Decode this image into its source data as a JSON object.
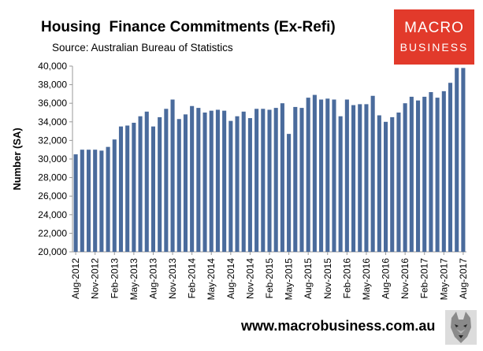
{
  "header": {
    "title": "Housing  Finance Commitments (Ex-Refi)",
    "subtitle": "Source: Australian Bureau of Statistics"
  },
  "logo": {
    "line1": "MACRO",
    "line2": "BUSINESS"
  },
  "footer": {
    "url": "www.macrobusiness.com.au"
  },
  "colors": {
    "bar": "#4a6b9c",
    "logo_bg": "#e23a2b"
  },
  "chart_data": {
    "type": "bar",
    "title": "Housing  Finance Commitments (Ex-Refi)",
    "ylabel": "Number (SA)",
    "xlabel": "",
    "ylim": [
      20000,
      40000
    ],
    "yticks": [
      20000,
      22000,
      24000,
      26000,
      28000,
      30000,
      32000,
      34000,
      36000,
      38000,
      40000
    ],
    "ytick_labels": [
      "20,000",
      "22,000",
      "24,000",
      "26,000",
      "28,000",
      "30,000",
      "32,000",
      "34,000",
      "36,000",
      "38,000",
      "40,000"
    ],
    "grid": false,
    "categories": [
      "Aug-2012",
      "Sep-2012",
      "Oct-2012",
      "Nov-2012",
      "Dec-2012",
      "Jan-2013",
      "Feb-2013",
      "Mar-2013",
      "Apr-2013",
      "May-2013",
      "Jun-2013",
      "Jul-2013",
      "Aug-2013",
      "Sep-2013",
      "Oct-2013",
      "Nov-2013",
      "Dec-2013",
      "Jan-2014",
      "Feb-2014",
      "Mar-2014",
      "Apr-2014",
      "May-2014",
      "Jun-2014",
      "Jul-2014",
      "Aug-2014",
      "Sep-2014",
      "Oct-2014",
      "Nov-2014",
      "Dec-2014",
      "Jan-2015",
      "Feb-2015",
      "Mar-2015",
      "Apr-2015",
      "May-2015",
      "Jun-2015",
      "Jul-2015",
      "Aug-2015",
      "Sep-2015",
      "Oct-2015",
      "Nov-2015",
      "Dec-2015",
      "Jan-2016",
      "Feb-2016",
      "Mar-2016",
      "Apr-2016",
      "May-2016",
      "Jun-2016",
      "Jul-2016",
      "Aug-2016",
      "Sep-2016",
      "Oct-2016",
      "Nov-2016",
      "Dec-2016",
      "Jan-2017",
      "Feb-2017",
      "Mar-2017",
      "Apr-2017",
      "May-2017",
      "Jun-2017",
      "Jul-2017",
      "Aug-2017"
    ],
    "x_tick_labels": [
      "Aug-2012",
      "Nov-2012",
      "Feb-2013",
      "May-2013",
      "Aug-2013",
      "Nov-2013",
      "Feb-2014",
      "May-2014",
      "Aug-2014",
      "Nov-2014",
      "Feb-2015",
      "May-2015",
      "Aug-2015",
      "Nov-2015",
      "Feb-2016",
      "May-2016",
      "Aug-2016",
      "Nov-2016",
      "Feb-2017",
      "May-2017",
      "Aug-2017"
    ],
    "values": [
      30500,
      31000,
      31000,
      31000,
      30900,
      31300,
      32100,
      33500,
      33600,
      33900,
      34600,
      35100,
      33500,
      34500,
      35400,
      36400,
      34300,
      34800,
      35700,
      35500,
      35000,
      35200,
      35300,
      35200,
      34100,
      34600,
      35100,
      34400,
      35400,
      35400,
      35300,
      35500,
      36000,
      32700,
      35600,
      35500,
      36600,
      36900,
      36400,
      36500,
      36400,
      34600,
      36400,
      35800,
      35900,
      35900,
      36800,
      34700,
      34000,
      34500,
      35000,
      36000,
      36700,
      36300,
      36700,
      37200,
      36600,
      37300,
      38200,
      39800,
      39800
    ]
  }
}
